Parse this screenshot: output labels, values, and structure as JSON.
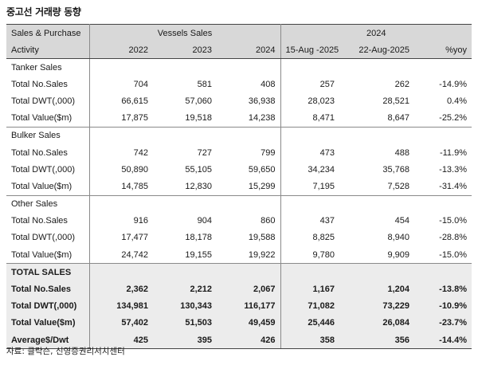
{
  "title": "중고선 거래량 동향",
  "header": {
    "row1": {
      "left": "Sales & Purchase",
      "vessels": "Vessels Sales",
      "year": "2024"
    },
    "row2": {
      "activity": "Activity",
      "cols": [
        "2022",
        "2023",
        "2024",
        "15-Aug -2025",
        "22-Aug-2025",
        "%yoy"
      ]
    }
  },
  "sections": [
    {
      "name": "Tanker Sales",
      "rows": [
        {
          "label": "Total No.Sales",
          "values": [
            "704",
            "581",
            "408",
            "257",
            "262",
            "-14.9%"
          ]
        },
        {
          "label": "Total DWT(,000)",
          "values": [
            "66,615",
            "57,060",
            "36,938",
            "28,023",
            "28,521",
            "0.4%"
          ]
        },
        {
          "label": "Total Value($m)",
          "values": [
            "17,875",
            "19,518",
            "14,238",
            "8,471",
            "8,647",
            "-25.2%"
          ]
        }
      ]
    },
    {
      "name": "Bulker Sales",
      "rows": [
        {
          "label": "Total No.Sales",
          "values": [
            "742",
            "727",
            "799",
            "473",
            "488",
            "-11.9%"
          ]
        },
        {
          "label": "Total DWT(,000)",
          "values": [
            "50,890",
            "55,105",
            "59,650",
            "34,234",
            "35,768",
            "-13.3%"
          ]
        },
        {
          "label": "Total Value($m)",
          "values": [
            "14,785",
            "12,830",
            "15,299",
            "7,195",
            "7,528",
            "-31.4%"
          ]
        }
      ]
    },
    {
      "name": "Other Sales",
      "rows": [
        {
          "label": "Total No.Sales",
          "values": [
            "916",
            "904",
            "860",
            "437",
            "454",
            "-15.0%"
          ]
        },
        {
          "label": "Total DWT(,000)",
          "values": [
            "17,477",
            "18,178",
            "19,588",
            "8,825",
            "8,940",
            "-28.8%"
          ]
        },
        {
          "label": "Total Value($m)",
          "values": [
            "24,742",
            "19,155",
            "19,922",
            "9,780",
            "9,909",
            "-15.0%"
          ]
        }
      ]
    }
  ],
  "total": {
    "name": "TOTAL SALES",
    "rows": [
      {
        "label": "Total No.Sales",
        "values": [
          "2,362",
          "2,212",
          "2,067",
          "1,167",
          "1,204",
          "-13.8%"
        ]
      },
      {
        "label": "Total DWT(,000)",
        "values": [
          "134,981",
          "130,343",
          "116,177",
          "71,082",
          "73,229",
          "-10.9%"
        ]
      },
      {
        "label": "Total Value($m)",
        "values": [
          "57,402",
          "51,503",
          "49,459",
          "25,446",
          "26,084",
          "-23.7%"
        ]
      },
      {
        "label": "Average$/Dwt",
        "values": [
          "425",
          "395",
          "426",
          "358",
          "356",
          "-14.4%"
        ]
      }
    ]
  },
  "source": "자료: 클락슨, 신영증권리서치센터"
}
